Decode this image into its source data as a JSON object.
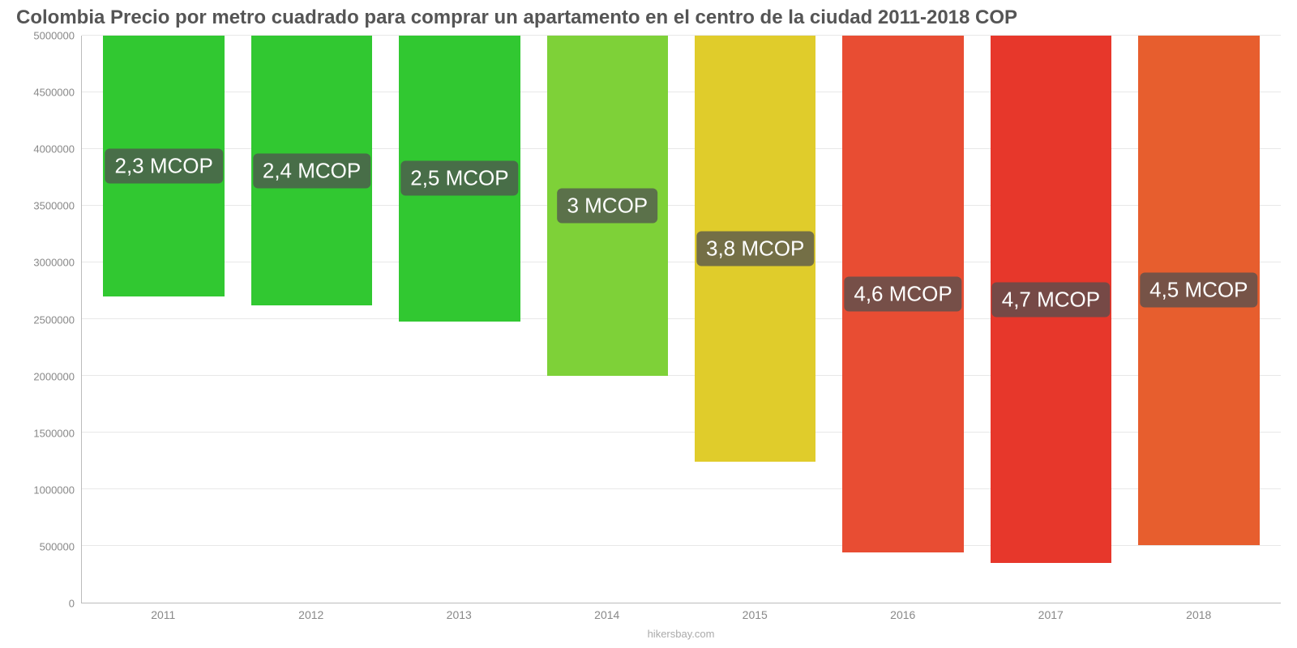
{
  "chart": {
    "type": "bar",
    "title": "Colombia Precio por metro cuadrado para comprar un apartamento en el centro de la ciudad 2011-2018 COP",
    "title_fontsize": 24,
    "title_color": "#555555",
    "background_color": "#ffffff",
    "grid_color": "#e8e8e8",
    "axis_color": "#bbbbbb",
    "tick_label_color": "#888888",
    "tick_label_fontsize": 13,
    "bar_label_fontsize": 26,
    "bar_label_bg": "rgba(80,80,80,0.75)",
    "bar_label_color": "#ffffff",
    "source": "hikersbay.com",
    "source_color": "#aaaaaa",
    "ylim": [
      0,
      5000000
    ],
    "ytick_step": 500000,
    "yticks": [
      {
        "v": 0,
        "label": "0"
      },
      {
        "v": 500000,
        "label": "500000"
      },
      {
        "v": 1000000,
        "label": "1000000"
      },
      {
        "v": 1500000,
        "label": "1500000"
      },
      {
        "v": 2000000,
        "label": "2000000"
      },
      {
        "v": 2500000,
        "label": "2500000"
      },
      {
        "v": 3000000,
        "label": "3000000"
      },
      {
        "v": 3500000,
        "label": "3500000"
      },
      {
        "v": 4000000,
        "label": "4000000"
      },
      {
        "v": 4500000,
        "label": "4500000"
      },
      {
        "v": 5000000,
        "label": "5000000"
      }
    ],
    "categories": [
      "2011",
      "2012",
      "2013",
      "2014",
      "2015",
      "2016",
      "2017",
      "2018"
    ],
    "values": [
      2300000,
      2380000,
      2520000,
      3000000,
      3760000,
      4560000,
      4650000,
      4490000
    ],
    "value_labels": [
      "2,3 MCOP",
      "2,4 MCOP",
      "2,5 MCOP",
      "3 MCOP",
      "3,8 MCOP",
      "4,6 MCOP",
      "4,7 MCOP",
      "4,5 MCOP"
    ],
    "bar_colors": [
      "#31c831",
      "#31c831",
      "#31c831",
      "#7ed138",
      "#e0cc2b",
      "#e84d33",
      "#e7372b",
      "#e75e2e"
    ],
    "bar_width_pct": 82
  }
}
